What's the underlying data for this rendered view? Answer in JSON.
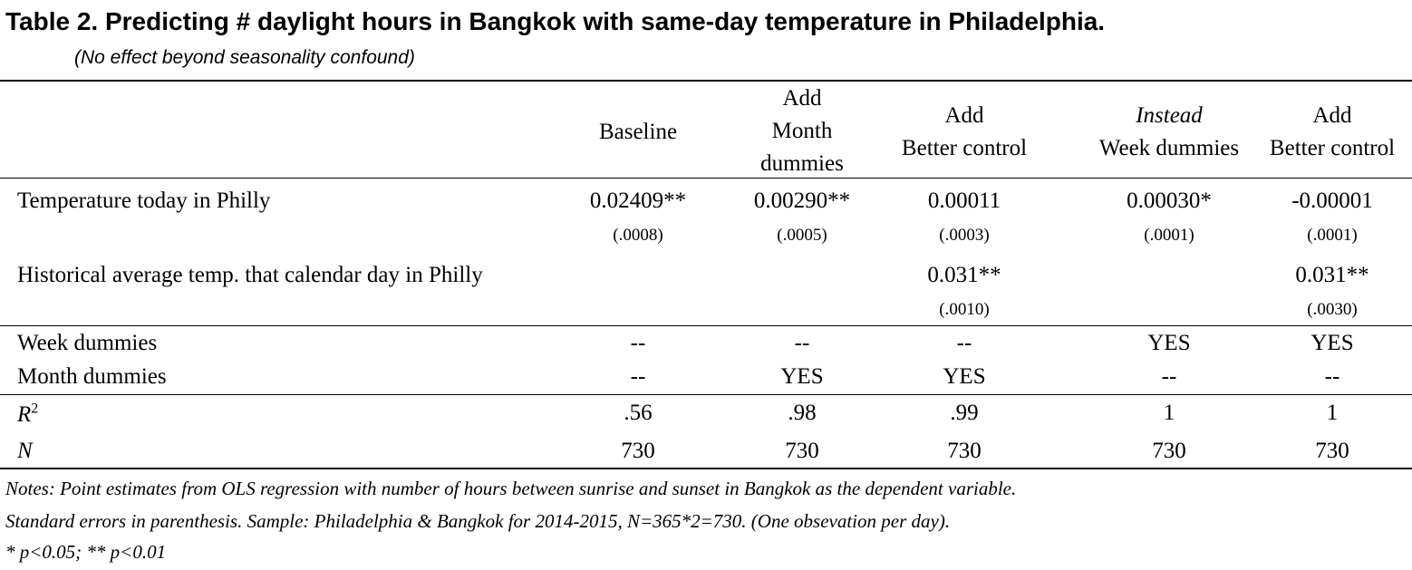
{
  "title": "Table 2. Predicting # daylight hours in Bangkok with same-day temperature in Philadelphia.",
  "subtitle": "(No effect beyond seasonality confound)",
  "columns": [
    {
      "lines": [
        "Baseline"
      ],
      "italic_first": false
    },
    {
      "lines": [
        "Add",
        "Month",
        "dummies"
      ],
      "italic_first": false
    },
    {
      "lines": [
        "Add",
        "Better control"
      ],
      "italic_first": false
    },
    {
      "lines": [
        "Instead",
        "Week dummies"
      ],
      "italic_first": true
    },
    {
      "lines": [
        "Add",
        "Better control"
      ],
      "italic_first": false
    }
  ],
  "rows": {
    "temp_today": {
      "label": "Temperature today in Philly",
      "estimates": [
        "0.02409**",
        "0.00290**",
        "0.00011",
        "0.00030*",
        "-0.00001"
      ],
      "se": [
        "(.0008)",
        "(.0005)",
        "(.0003)",
        "(.0001)",
        "(.0001)"
      ]
    },
    "hist_avg": {
      "label": "Historical average temp. that calendar day in Philly",
      "estimates": [
        "",
        "",
        "0.031**",
        "",
        "0.031**"
      ],
      "se": [
        "",
        "",
        "(.0010)",
        "",
        "(.0030)"
      ]
    },
    "week_dummies": {
      "label": "Week dummies",
      "values": [
        "--",
        "--",
        "--",
        "YES",
        "YES"
      ]
    },
    "month_dummies": {
      "label": "Month dummies",
      "values": [
        "--",
        "YES",
        "YES",
        "--",
        "--"
      ]
    },
    "r2": {
      "label": "R",
      "label_sup": "2",
      "values": [
        ".56",
        ".98",
        ".99",
        "1",
        "1"
      ]
    },
    "n": {
      "label": "N",
      "values": [
        "730",
        "730",
        "730",
        "730",
        "730"
      ]
    }
  },
  "notes": [
    "Notes: Point estimates from OLS regression with number of hours between sunrise and sunset in Bangkok as the dependent variable.",
    "Standard errors in parenthesis.  Sample: Philadelphia & Bangkok for 2014-2015, N=365*2=730. (One obsevation per day).",
    "* p<0.05; ** p<0.01"
  ]
}
